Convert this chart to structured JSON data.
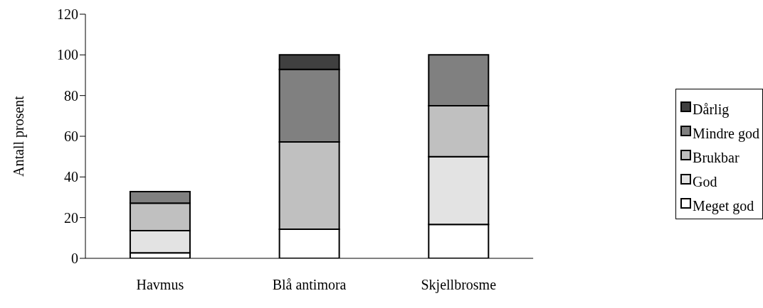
{
  "chart_data": {
    "type": "bar",
    "stacked": true,
    "ylabel": "Antall prosent",
    "categories": [
      "Havmus",
      "Blå antimora",
      "Skjellbrosme"
    ],
    "series": [
      {
        "name": "Meget god",
        "color": "#ffffff",
        "values": [
          2.7,
          14.3,
          16.7
        ]
      },
      {
        "name": "God",
        "color": "#e3e3e3",
        "values": [
          10.9,
          0,
          33.3
        ]
      },
      {
        "name": "Brukbar",
        "color": "#c0c0c0",
        "values": [
          13.5,
          42.9,
          25
        ]
      },
      {
        "name": "Mindre god",
        "color": "#808080",
        "values": [
          5.7,
          35.7,
          25
        ]
      },
      {
        "name": "Dårlig",
        "color": "#404040",
        "values": [
          0,
          7.1,
          0
        ]
      }
    ],
    "ylim": [
      0,
      120
    ],
    "yticks": [
      0,
      20,
      40,
      60,
      80,
      100,
      120
    ],
    "grid": false,
    "legend": "right"
  }
}
